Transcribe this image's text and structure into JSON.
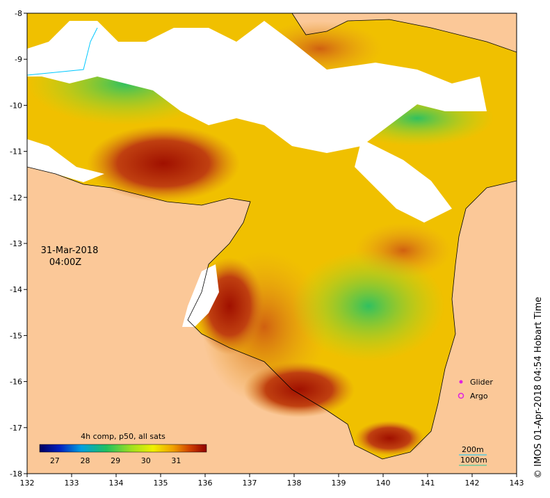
{
  "map": {
    "timestamp_date": "31-Mar-2018",
    "timestamp_time": "04:00Z",
    "credit": "© IMOS 01-Apr-2018 04:54 Hobart Time",
    "colorbar": {
      "title": "4h comp, p50, all sats",
      "ticks": [
        "27",
        "28",
        "29",
        "30",
        "31"
      ],
      "range": [
        26.5,
        32
      ]
    },
    "legend": {
      "glider_label": "Glider",
      "argo_label": "Argo",
      "glider_color": "#e020e0",
      "argo_color": "#e020e0"
    },
    "contours": {
      "label_200": "200m",
      "label_1000": "1000m",
      "color_200": "#00c8ff",
      "color_1000": "#20c8a0"
    },
    "axes": {
      "x_ticks": [
        "132",
        "133",
        "134",
        "135",
        "136",
        "137",
        "138",
        "139",
        "140",
        "141",
        "142",
        "143"
      ],
      "y_ticks": [
        "-8",
        "-9",
        "-10",
        "-11",
        "-12",
        "-13",
        "-14",
        "-15",
        "-16",
        "-17",
        "-18"
      ],
      "xlim": [
        132,
        143
      ],
      "ylim": [
        -18,
        -8
      ]
    },
    "colors": {
      "land": "#fbc898",
      "cloud": "#ffffff",
      "warm_dark": "#a01000",
      "warm": "#d06010",
      "mid": "#f0c000",
      "cool": "#a0e020",
      "cooler": "#30c060",
      "cold": "#20a0c0"
    }
  }
}
